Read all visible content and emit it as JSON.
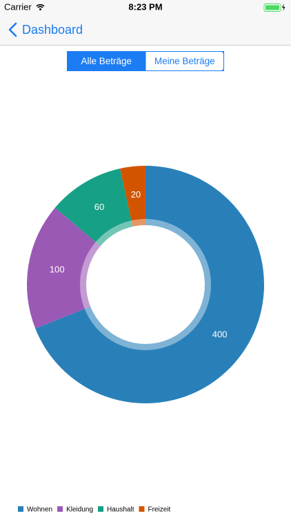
{
  "status_bar": {
    "carrier": "Carrier",
    "time": "8:23 PM"
  },
  "nav": {
    "back": "Dashboard"
  },
  "segmented_control": {
    "options": [
      "Alle Beträge",
      "Meine Beträge"
    ],
    "selected": 0
  },
  "chart_data": {
    "type": "pie",
    "categories": [
      "Wohnen",
      "Kleidung",
      "Haushalt",
      "Freizeit"
    ],
    "values": [
      400,
      100,
      60,
      20
    ],
    "colors": [
      "#2980b9",
      "#9b59b6",
      "#16a085",
      "#d35400"
    ]
  }
}
